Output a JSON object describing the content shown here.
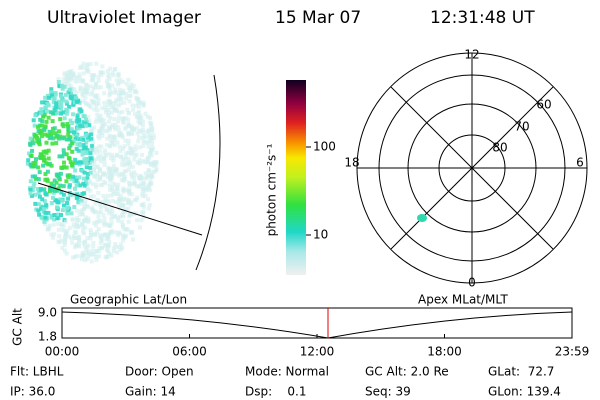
{
  "header": {
    "title": "Ultraviolet Imager",
    "date": "15 Mar 07",
    "time": "12:31:48 UT"
  },
  "colorbar": {
    "label": "photon cm⁻²s⁻¹",
    "ticks": [
      "100",
      "10"
    ]
  },
  "polar": {
    "mlt_labels": [
      "12",
      "18",
      "6",
      "0"
    ],
    "lat_labels": [
      "60",
      "70",
      "80"
    ]
  },
  "timeline": {
    "y_label": "GC Alt",
    "y_ticks": [
      "9.0",
      "1.8"
    ],
    "left_label": "Geographic Lat/Lon",
    "right_label": "Apex MLat/MLT",
    "x_ticks": [
      "00:00",
      "06:00",
      "12:00",
      "18:00",
      "23:59"
    ]
  },
  "footer": {
    "rows": [
      [
        "Flt: LBHL",
        "Door: Open",
        "Mode: Normal",
        "GC Alt: 2.0 Re",
        "GLat:  72.7"
      ],
      [
        "IP: 36.0",
        "Gain: 14",
        "Dsp:    0.1",
        "Seq: 39",
        "GLon: 139.4"
      ]
    ]
  }
}
